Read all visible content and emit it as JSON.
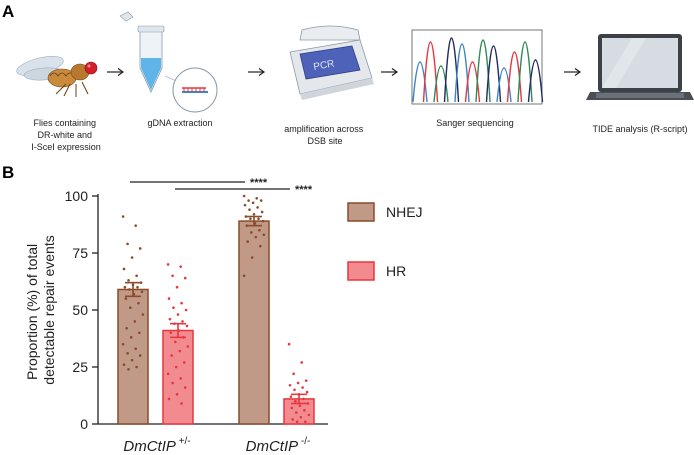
{
  "panel_a": {
    "label": "A",
    "steps": [
      {
        "icon": "fly-icon",
        "caption_lines": [
          "Flies containing",
          "DR-white and",
          "I-SceI expression"
        ]
      },
      {
        "icon": "tube-dna-icon",
        "caption_lines": [
          "gDNA extraction"
        ]
      },
      {
        "icon": "pcr-machine-icon",
        "caption_lines": [
          "amplification across",
          "DSB site"
        ]
      },
      {
        "icon": "chromatogram-icon",
        "caption_lines": [
          "Sanger sequencing"
        ]
      },
      {
        "icon": "laptop-icon",
        "caption_lines": [
          "TIDE analysis (R-script)"
        ]
      }
    ],
    "pcr_label": "PCR"
  },
  "panel_b": {
    "label": "B"
  },
  "colors": {
    "nhej_fill": "#c09a87",
    "nhej_stroke": "#8b4a2b",
    "nhej_dot": "#8b4a2b",
    "hr_fill": "#f28b8f",
    "hr_stroke": "#e8363f",
    "hr_dot": "#e8363f"
  },
  "chart_data": {
    "type": "bar",
    "ylabel_lines": [
      "Proportion (%) of total",
      "detectable repair events"
    ],
    "ylim": [
      0,
      100
    ],
    "yticks": [
      0,
      25,
      50,
      75,
      100
    ],
    "categories": [
      {
        "name": "DmCtIP",
        "superscript": "+/-"
      },
      {
        "name": "DmCtIP",
        "superscript": "-/-"
      }
    ],
    "series": [
      {
        "name": "NHEJ",
        "values": [
          59,
          89
        ],
        "sem": [
          3,
          2
        ],
        "points": [
          [
            91,
            87,
            79,
            77,
            73,
            68,
            65,
            63,
            62,
            61,
            60,
            60,
            59,
            58,
            57,
            55,
            53,
            51,
            48,
            45,
            42,
            40,
            38,
            35,
            33,
            31,
            30,
            28,
            26,
            25,
            24
          ],
          [
            100,
            99,
            98,
            98,
            97,
            96,
            95,
            94,
            93,
            92,
            91,
            90,
            90,
            89,
            88,
            87,
            85,
            84,
            83,
            82,
            80,
            78,
            73,
            65
          ]
        ]
      },
      {
        "name": "HR",
        "values": [
          41,
          11
        ],
        "sem": [
          3,
          2
        ],
        "points": [
          [
            70,
            69,
            65,
            64,
            60,
            55,
            53,
            51,
            50,
            48,
            46,
            45,
            44,
            43,
            41,
            40,
            38,
            36,
            34,
            32,
            30,
            27,
            25,
            22,
            20,
            18,
            16,
            13,
            11,
            9
          ],
          [
            35,
            27,
            22,
            19,
            18,
            17,
            16,
            15,
            14,
            13,
            12,
            11,
            10,
            9,
            8,
            7,
            6,
            5,
            4,
            3,
            2,
            1,
            1
          ]
        ]
      }
    ],
    "significance": [
      {
        "label": "****",
        "from": "DmCtIP +/- NHEJ",
        "to": "DmCtIP -/- NHEJ"
      },
      {
        "label": "****",
        "from": "DmCtIP +/- HR",
        "to": "DmCtIP -/- HR"
      }
    ],
    "legend": {
      "position": "right",
      "entries": [
        "NHEJ",
        "HR"
      ]
    },
    "grid": false
  }
}
